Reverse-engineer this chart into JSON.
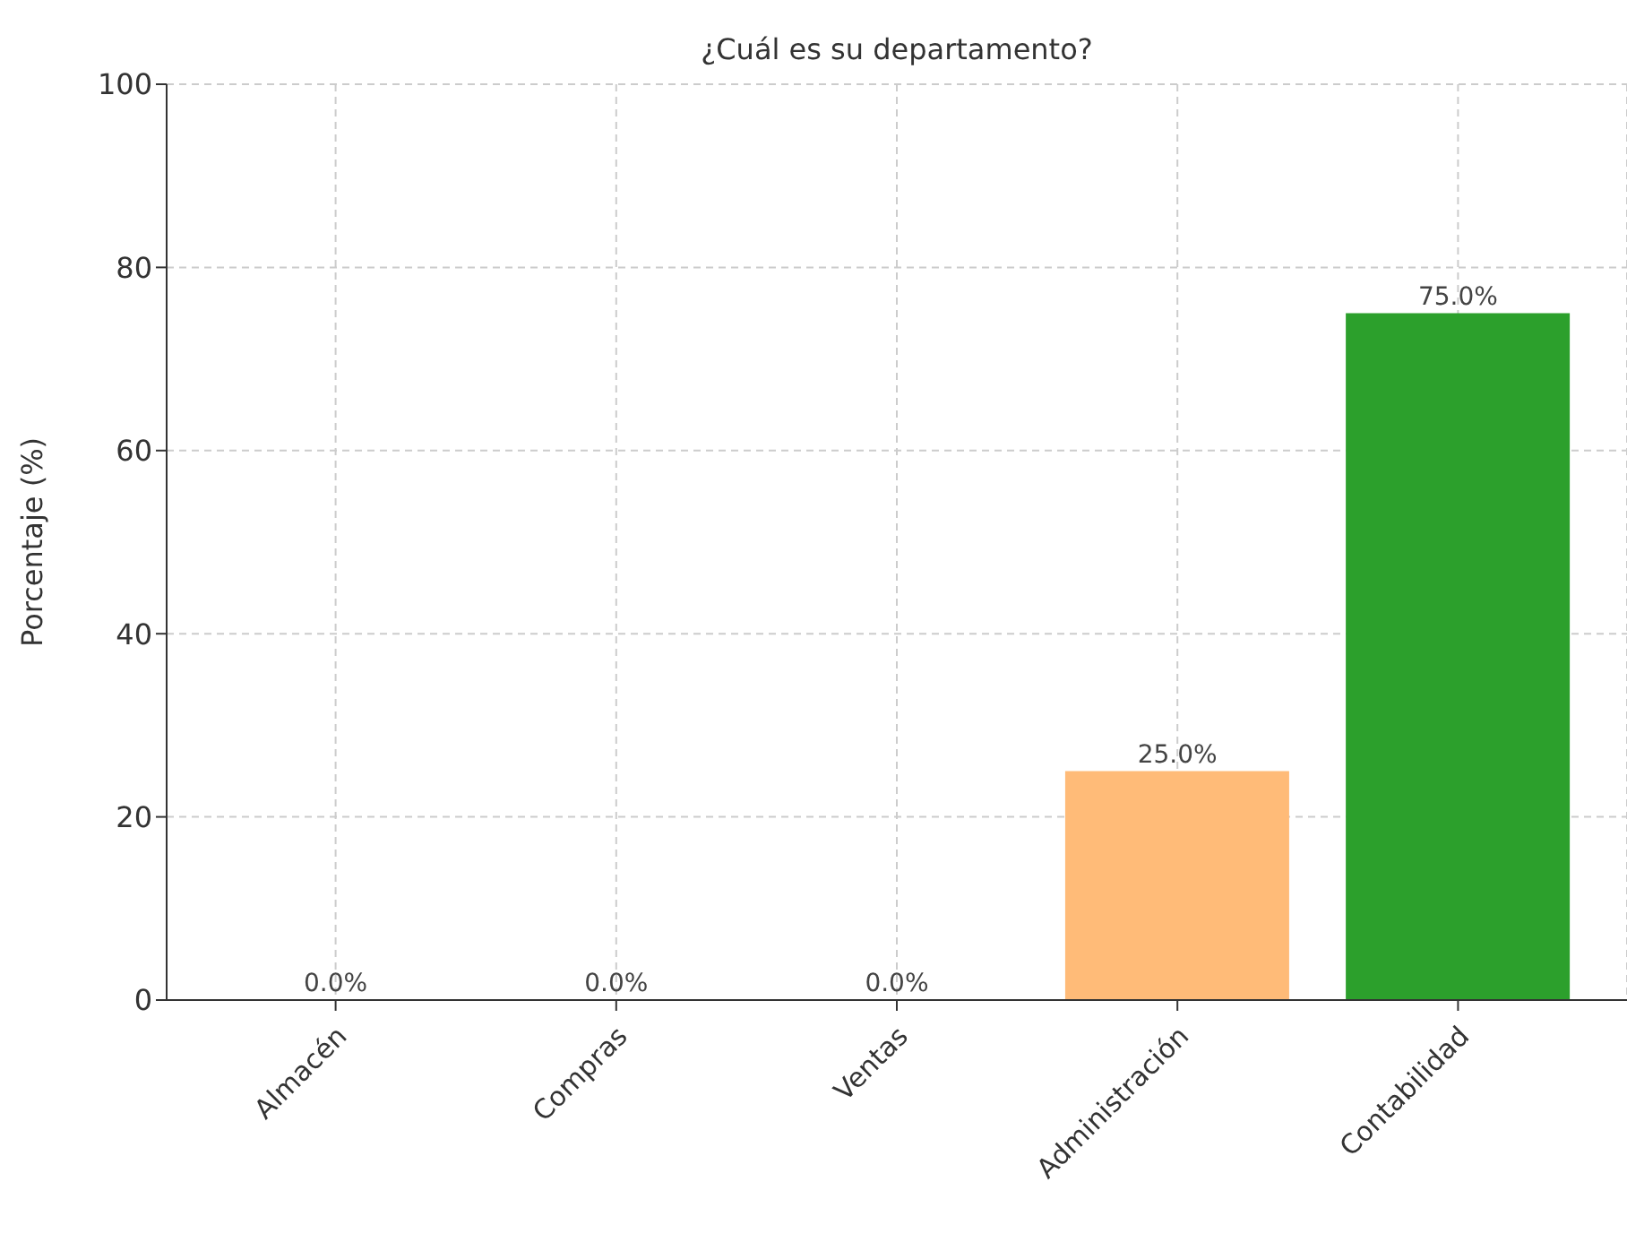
{
  "chart_data": {
    "type": "bar",
    "title": "¿Cuál es su departamento?",
    "ylabel": "Porcentaje (%)",
    "categories": [
      "Almacén",
      "Compras",
      "Ventas",
      "Administración",
      "Contabilidad"
    ],
    "values": [
      0,
      0,
      0,
      25,
      75
    ],
    "colors": [
      "#1f77b4",
      "#aec7e8",
      "#ff7f0e",
      "#ffbb78",
      "#2ca02c"
    ],
    "value_labels": [
      "0.0%",
      "0.0%",
      "0.0%",
      "25.0%",
      "75.0%"
    ],
    "ylim": [
      0,
      100
    ],
    "yticks": [
      0,
      20,
      40,
      60,
      80,
      100
    ],
    "grid": true
  }
}
